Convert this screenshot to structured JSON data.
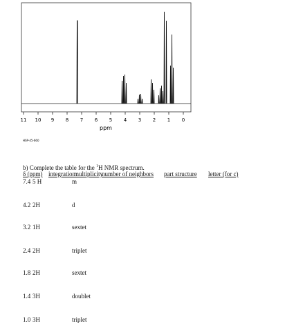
{
  "spectrum": {
    "xticks": [
      11,
      10,
      9,
      8,
      7,
      6,
      5,
      4,
      3,
      2,
      1,
      0
    ],
    "xlabel": "ppm",
    "code": "HSP-45-660"
  },
  "question": {
    "prefix": "b) Complete the table for the ",
    "sup": "1",
    "suffix": "H NMR spectrum."
  },
  "table": {
    "headers": [
      "δ (ppm)",
      "integration",
      "multiplicity",
      "number of neighbors",
      "part structure",
      "letter (for c)"
    ],
    "rows": [
      [
        "7.4",
        "5 H",
        "m"
      ],
      [
        "4.2",
        "2H",
        "d"
      ],
      [
        "3.2",
        "1H",
        "sextet"
      ],
      [
        "2.4",
        "2H",
        "triplet"
      ],
      [
        "1.8",
        "2H",
        "sextet"
      ],
      [
        "1.4",
        "3H",
        "doublet"
      ],
      [
        "1.0",
        "3H",
        "triplet"
      ]
    ]
  }
}
